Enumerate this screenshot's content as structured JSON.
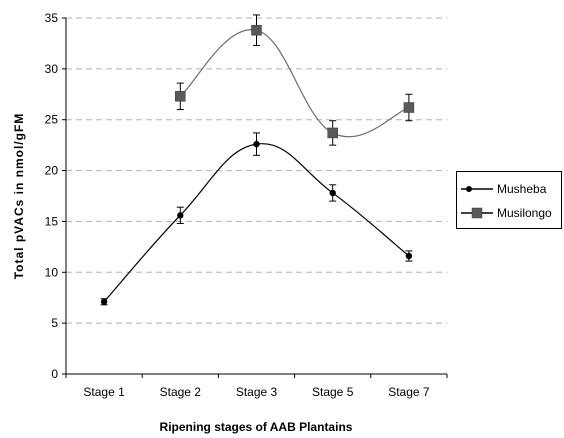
{
  "chart_data": {
    "type": "line",
    "title": "",
    "xlabel": "Ripening stages of AAB Plantains",
    "ylabel": "Total pVACs in nmol/gFM",
    "categories": [
      "Stage 1",
      "Stage 2",
      "Stage 3",
      "Stage 5",
      "Stage 7"
    ],
    "ylim": [
      0,
      35
    ],
    "yticks": [
      0,
      5,
      10,
      15,
      20,
      25,
      30,
      35
    ],
    "grid": "horizontal dashed",
    "legend_position": "right",
    "series": [
      {
        "name": "Musheba",
        "marker": "circle",
        "color": "#000000",
        "values": [
          7.1,
          15.6,
          22.6,
          17.8,
          11.6
        ],
        "error": [
          0.3,
          0.8,
          1.1,
          0.8,
          0.5
        ]
      },
      {
        "name": "Musilongo",
        "marker": "square",
        "color": "#595959",
        "values": [
          null,
          27.3,
          33.8,
          23.7,
          26.2
        ],
        "error": [
          null,
          1.3,
          1.5,
          1.2,
          1.3
        ]
      }
    ]
  }
}
